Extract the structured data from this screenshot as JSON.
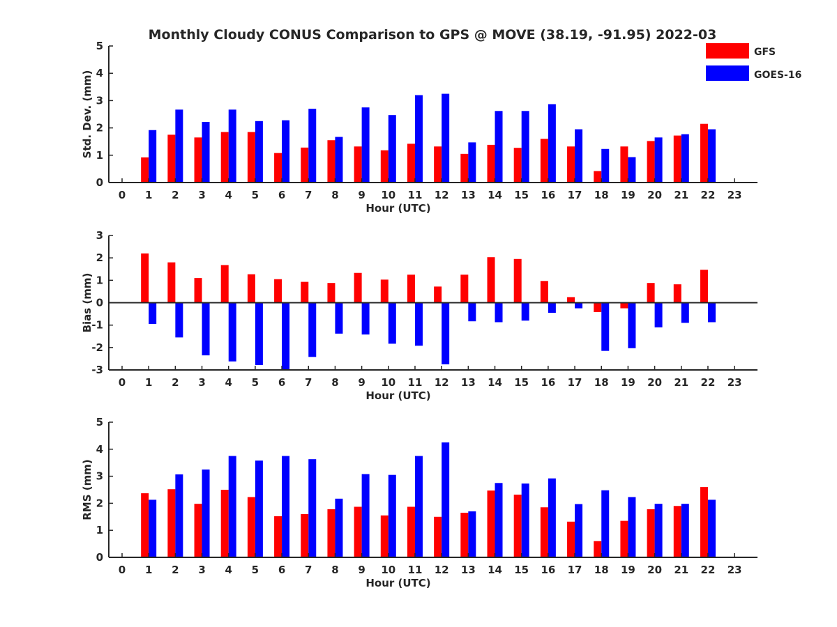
{
  "figure": {
    "title": "Monthly Cloudy CONUS Comparison to GPS @ MOVE (38.19, -91.95) 2022-03",
    "legend": [
      {
        "label": "GFS",
        "color": "#ff0000"
      },
      {
        "label": "GOES-16",
        "color": "#0000ff"
      }
    ]
  },
  "chart_data": [
    {
      "type": "bar",
      "title": "Monthly Cloudy CONUS Comparison to GPS @ MOVE (38.19, -91.95) 2022-03",
      "xlabel": "Hour (UTC)",
      "ylabel": "Std. Dev. (mm)",
      "ylim": [
        0,
        5
      ],
      "yticks": [
        "0",
        "1",
        "2",
        "3",
        "4",
        "5"
      ],
      "xticks": [
        "0",
        "1",
        "2",
        "3",
        "4",
        "5",
        "6",
        "7",
        "8",
        "9",
        "10",
        "11",
        "12",
        "13",
        "14",
        "15",
        "16",
        "17",
        "18",
        "19",
        "20",
        "21",
        "22",
        "23"
      ],
      "categories": [
        0,
        1,
        2,
        3,
        4,
        5,
        6,
        7,
        8,
        9,
        10,
        11,
        12,
        13,
        14,
        15,
        16,
        17,
        18,
        19,
        20,
        21,
        22,
        23
      ],
      "series": [
        {
          "name": "GFS",
          "color": "#ff0000",
          "values": [
            null,
            0.92,
            1.75,
            1.65,
            1.85,
            1.85,
            1.08,
            1.28,
            1.55,
            1.32,
            1.18,
            1.42,
            1.32,
            1.05,
            1.38,
            1.27,
            1.6,
            1.32,
            0.42,
            1.32,
            1.52,
            1.72,
            2.15,
            null
          ]
        },
        {
          "name": "GOES-16",
          "color": "#0000ff",
          "values": [
            null,
            1.92,
            2.67,
            2.22,
            2.67,
            2.25,
            2.28,
            2.7,
            1.67,
            2.75,
            2.47,
            3.2,
            3.25,
            1.47,
            2.62,
            2.62,
            2.87,
            1.95,
            1.23,
            0.93,
            1.65,
            1.77,
            1.95,
            null
          ]
        }
      ],
      "legend": "top-right"
    },
    {
      "type": "bar",
      "title": "",
      "xlabel": "Hour (UTC)",
      "ylabel": "Bias (mm)",
      "ylim": [
        -3,
        3
      ],
      "yticks": [
        "-3",
        "-2",
        "-1",
        "0",
        "1",
        "2",
        "3"
      ],
      "xticks": [
        "0",
        "1",
        "2",
        "3",
        "4",
        "5",
        "6",
        "7",
        "8",
        "9",
        "10",
        "11",
        "12",
        "13",
        "14",
        "15",
        "16",
        "17",
        "18",
        "19",
        "20",
        "21",
        "22",
        "23"
      ],
      "categories": [
        0,
        1,
        2,
        3,
        4,
        5,
        6,
        7,
        8,
        9,
        10,
        11,
        12,
        13,
        14,
        15,
        16,
        17,
        18,
        19,
        20,
        21,
        22,
        23
      ],
      "series": [
        {
          "name": "GFS",
          "color": "#ff0000",
          "values": [
            null,
            2.2,
            1.8,
            1.1,
            1.68,
            1.27,
            1.05,
            0.93,
            0.88,
            1.33,
            1.03,
            1.25,
            0.72,
            1.25,
            2.03,
            1.95,
            0.97,
            0.25,
            -0.42,
            -0.25,
            0.88,
            0.82,
            1.47,
            null
          ]
        },
        {
          "name": "GOES-16",
          "color": "#0000ff",
          "values": [
            null,
            -0.95,
            -1.55,
            -2.35,
            -2.62,
            -2.78,
            -2.97,
            -2.42,
            -1.38,
            -1.42,
            -1.83,
            -1.92,
            -2.75,
            -0.83,
            -0.87,
            -0.8,
            -0.45,
            -0.25,
            -2.15,
            -2.03,
            -1.1,
            -0.9,
            -0.87,
            null
          ]
        }
      ],
      "zero_line": true
    },
    {
      "type": "bar",
      "title": "",
      "xlabel": "Hour (UTC)",
      "ylabel": "RMS (mm)",
      "ylim": [
        0,
        5
      ],
      "yticks": [
        "0",
        "1",
        "2",
        "3",
        "4",
        "5"
      ],
      "xticks": [
        "0",
        "1",
        "2",
        "3",
        "4",
        "5",
        "6",
        "7",
        "8",
        "9",
        "10",
        "11",
        "12",
        "13",
        "14",
        "15",
        "16",
        "17",
        "18",
        "19",
        "20",
        "21",
        "22",
        "23"
      ],
      "categories": [
        0,
        1,
        2,
        3,
        4,
        5,
        6,
        7,
        8,
        9,
        10,
        11,
        12,
        13,
        14,
        15,
        16,
        17,
        18,
        19,
        20,
        21,
        22,
        23
      ],
      "series": [
        {
          "name": "GFS",
          "color": "#ff0000",
          "values": [
            null,
            2.37,
            2.52,
            1.98,
            2.5,
            2.23,
            1.52,
            1.6,
            1.78,
            1.87,
            1.55,
            1.87,
            1.5,
            1.65,
            2.47,
            2.32,
            1.85,
            1.32,
            0.6,
            1.35,
            1.78,
            1.9,
            2.6,
            null
          ]
        },
        {
          "name": "GOES-16",
          "color": "#0000ff",
          "values": [
            null,
            2.13,
            3.07,
            3.25,
            3.75,
            3.58,
            3.75,
            3.63,
            2.17,
            3.08,
            3.05,
            3.75,
            4.25,
            1.7,
            2.75,
            2.73,
            2.92,
            1.97,
            2.48,
            2.23,
            1.98,
            1.98,
            2.13,
            null
          ]
        }
      ]
    }
  ]
}
